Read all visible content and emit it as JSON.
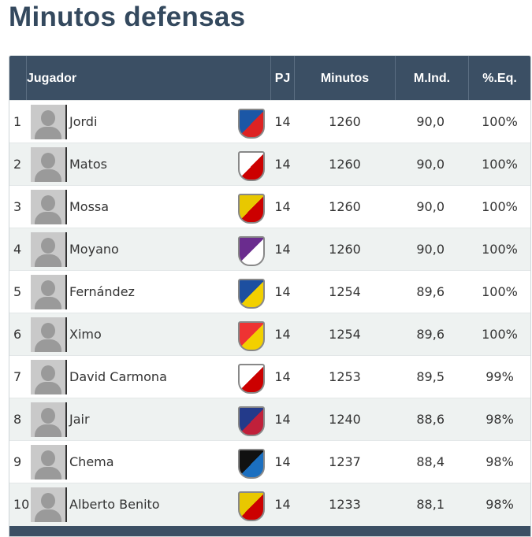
{
  "title": "Minutos defensas",
  "table": {
    "header": [
      "Jugador",
      "PJ",
      "Minutos",
      "M.Ind.",
      "%.Eq."
    ],
    "rows": [
      [
        "1",
        "Jordi",
        "14",
        "1260",
        "90,0",
        "100%"
      ],
      [
        "2",
        "Matos",
        "14",
        "1260",
        "90,0",
        "100%"
      ],
      [
        "3",
        "Mossa",
        "14",
        "1260",
        "90,0",
        "100%"
      ],
      [
        "4",
        "Moyano",
        "14",
        "1260",
        "90,0",
        "100%"
      ],
      [
        "5",
        "Fernández",
        "14",
        "1254",
        "89,6",
        "100%"
      ],
      [
        "6",
        "Ximo",
        "14",
        "1254",
        "89,6",
        "100%"
      ],
      [
        "7",
        "David Carmona",
        "14",
        "1253",
        "89,5",
        "99%"
      ],
      [
        "8",
        "Jair",
        "14",
        "1240",
        "88,6",
        "98%"
      ],
      [
        "9",
        "Chema",
        "14",
        "1237",
        "88,4",
        "98%"
      ],
      [
        "10",
        "Alberto Benito",
        "14",
        "1233",
        "88,1",
        "98%"
      ]
    ]
  }
}
